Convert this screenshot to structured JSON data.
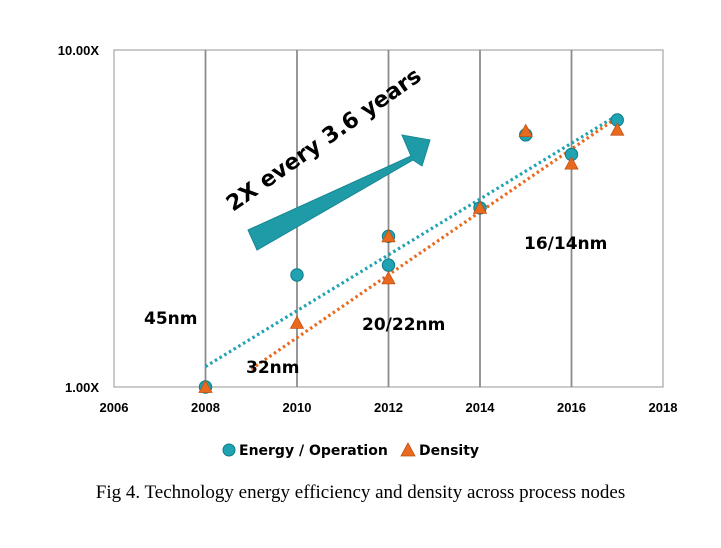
{
  "chart_data": {
    "type": "scatter",
    "title": "",
    "xlabel": "",
    "ylabel": "",
    "xlim": [
      2006,
      2018
    ],
    "ylim": [
      1,
      10
    ],
    "yscale": "log",
    "x_ticks": [
      2006,
      2008,
      2010,
      2012,
      2014,
      2016,
      2018
    ],
    "x_tick_labels": [
      "2006",
      "2008",
      "2010",
      "2012",
      "2014",
      "2016",
      "2018"
    ],
    "y_ticks": [
      1,
      10
    ],
    "y_tick_labels": [
      "1.00X",
      "10.00X"
    ],
    "grid": "vertical lines at 2008, 2010, 2012, 2014, 2016",
    "legend_position": "bottom",
    "series": [
      {
        "name": "Energy / Operation",
        "marker": "circle",
        "color": "#1fa3b3",
        "points": [
          [
            2008,
            1.0
          ],
          [
            2010,
            2.15
          ],
          [
            2012,
            2.8
          ],
          [
            2012,
            2.3
          ],
          [
            2014,
            3.4
          ],
          [
            2015,
            5.6
          ],
          [
            2016,
            4.9
          ],
          [
            2017,
            6.2
          ]
        ],
        "trendline": {
          "style": "dotted",
          "from": [
            2008,
            1.15
          ],
          "to": [
            2017,
            6.4
          ]
        }
      },
      {
        "name": "Density",
        "marker": "triangle",
        "color": "#e96a1f",
        "points": [
          [
            2008,
            1.0
          ],
          [
            2010,
            1.55
          ],
          [
            2012,
            2.1
          ],
          [
            2012,
            2.8
          ],
          [
            2014,
            3.4
          ],
          [
            2015,
            5.75
          ],
          [
            2016,
            4.6
          ],
          [
            2017,
            5.8
          ]
        ],
        "trendline": {
          "style": "dotted",
          "from": [
            2009,
            1.13
          ],
          "to": [
            2017,
            6.3
          ]
        }
      }
    ],
    "annotations": {
      "arrow_label": "2X every 3.6 years",
      "nodes": [
        "45nm",
        "32nm",
        "20/22nm",
        "16/14nm"
      ]
    },
    "caption": "Fig 4. Technology energy efficiency and density across process nodes"
  }
}
